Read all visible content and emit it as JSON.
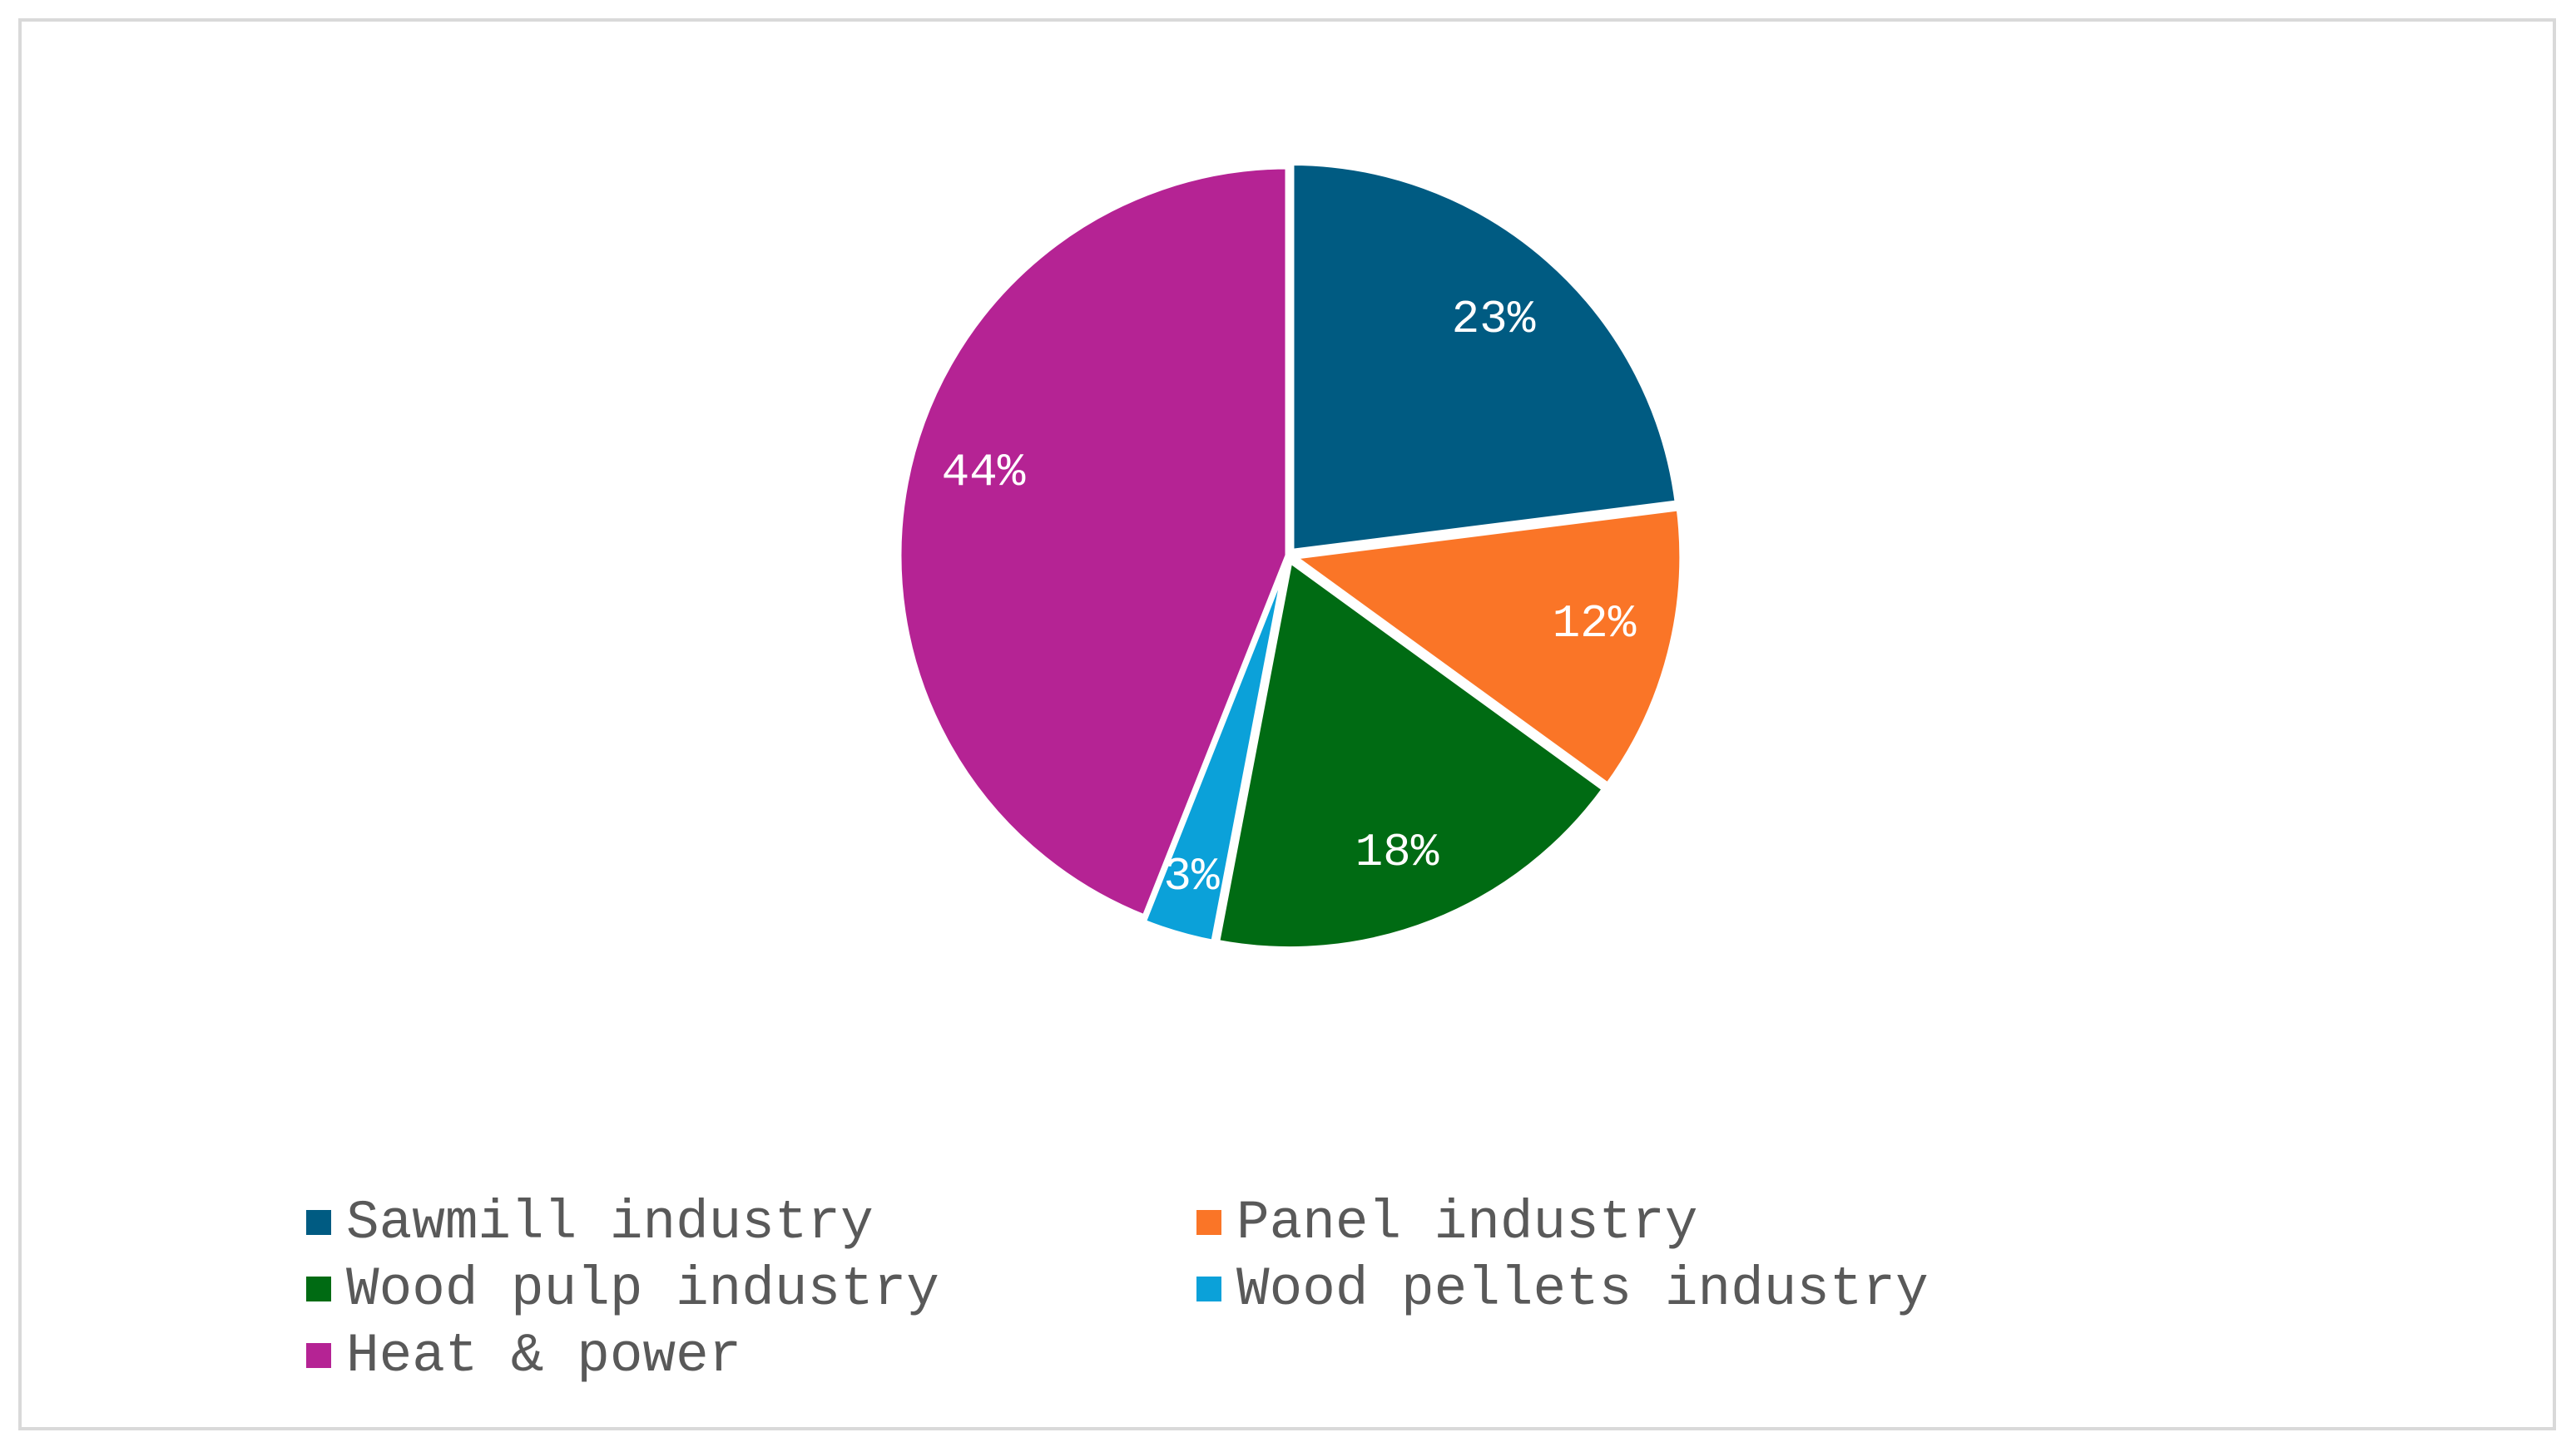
{
  "chart_data": {
    "type": "pie",
    "title": "",
    "start_angle_deg": 0,
    "direction": "clockwise",
    "slices": [
      {
        "label": "Sawmill industry",
        "value": 23,
        "display": "23%",
        "color": "#005b82"
      },
      {
        "label": "Panel industry",
        "value": 12,
        "display": "12%",
        "color": "#fa7527"
      },
      {
        "label": "Wood pulp industry",
        "value": 18,
        "display": "18%",
        "color": "#006b13"
      },
      {
        "label": "Wood pellets industry",
        "value": 3,
        "display": "3%",
        "color": "#0ba1d9"
      },
      {
        "label": "Heat & power",
        "value": 44,
        "display": "44%",
        "color": "#b52394"
      }
    ],
    "legend_position": "bottom",
    "data_labels": true
  }
}
